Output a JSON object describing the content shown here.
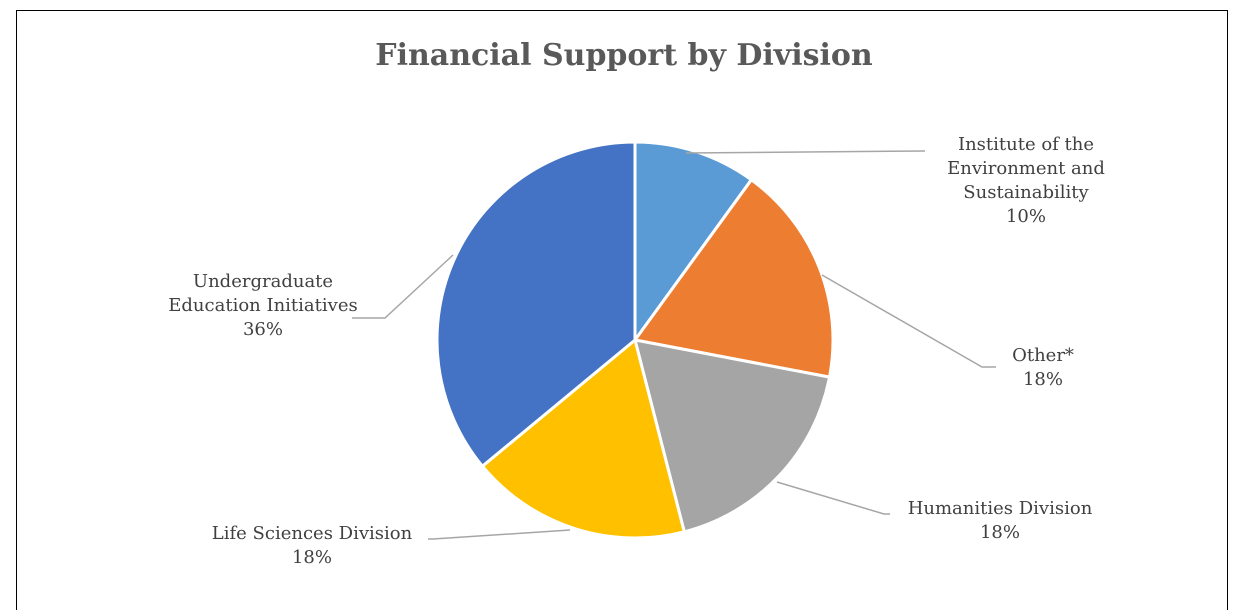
{
  "chart_data": {
    "type": "pie",
    "title": "Financial Support by Division",
    "slices": [
      {
        "label": "Institute of the Environment and Sustainability",
        "label_lines": [
          "Institute of the",
          "Environment and",
          "Sustainability"
        ],
        "value": 10,
        "value_label": "10%",
        "color": "#5B9BD5"
      },
      {
        "label": "Other*",
        "label_lines": [
          "Other*"
        ],
        "value": 18,
        "value_label": "18%",
        "color": "#ED7D31"
      },
      {
        "label": "Humanities Division",
        "label_lines": [
          "Humanities Division"
        ],
        "value": 18,
        "value_label": "18%",
        "color": "#A5A5A5"
      },
      {
        "label": "Life Sciences Division",
        "label_lines": [
          "Life Sciences Division"
        ],
        "value": 18,
        "value_label": "18%",
        "color": "#FFC000"
      },
      {
        "label": "Undergraduate Education Initiatives",
        "label_lines": [
          "Undergraduate",
          "Education Initiatives"
        ],
        "value": 36,
        "value_label": "36%",
        "color": "#4472C4"
      }
    ],
    "start_angle": "top, clockwise",
    "legend": "none",
    "data_labels": "outside with leader lines"
  }
}
